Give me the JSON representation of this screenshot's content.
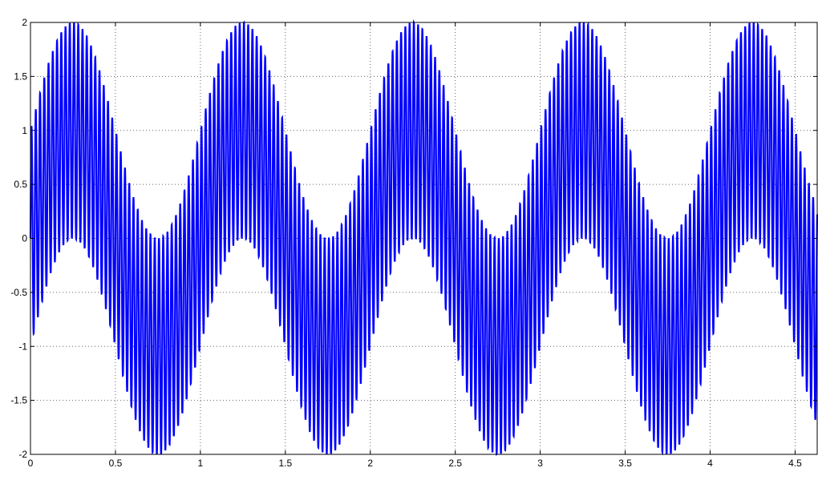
{
  "chart_data": {
    "type": "line",
    "xlim": [
      0,
      4.63
    ],
    "ylim": [
      -2,
      2
    ],
    "grid": true,
    "x_ticks": [
      "0",
      "0.5",
      "1",
      "1.5",
      "2",
      "2.5",
      "3",
      "3.5",
      "4",
      "4.5"
    ],
    "x_tick_values": [
      0,
      0.5,
      1,
      1.5,
      2,
      2.5,
      3,
      3.5,
      4,
      4.5
    ],
    "y_ticks": [
      "2",
      "1.5",
      "1",
      "0.5",
      "0",
      "-0.5",
      "-1",
      "-1.5",
      "-2"
    ],
    "y_tick_values": [
      2,
      1.5,
      1,
      0.5,
      0,
      -0.5,
      -1,
      -1.5,
      -2
    ],
    "series": [
      {
        "color": "#0000ff",
        "function": "sin(2*pi*1*x) + sin(2*pi*f*x)",
        "low_frequency_hz": 1,
        "high_frequency_hz": 40
      }
    ]
  }
}
